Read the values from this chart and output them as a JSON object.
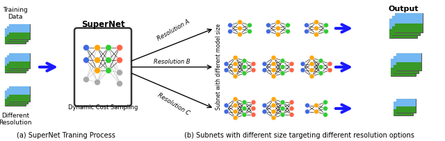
{
  "title_a": "(a) SuperNet Traning Process",
  "title_b": "(b) Subnets with different size targeting different resolution options",
  "supernet_label": "SuperNet",
  "dcs_label": "Dynamic Cost Sampling",
  "training_label": "Training\nData",
  "diff_res_label": "Different\nResolution",
  "output_label": "Output",
  "res_a_label": "Resolution A",
  "res_b_label": "Resolution B",
  "res_c_label": "Resolution C",
  "side_label": "Subnet with different model size",
  "node_colors": {
    "blue": "#4169e1",
    "orange": "#FFA500",
    "green": "#32CD32",
    "red": "#FF6347",
    "gray": "#A9A9A9"
  },
  "arrow_color": "#1a1aff",
  "bg_color": "#ffffff",
  "fig_width": 6.4,
  "fig_height": 2.04,
  "dpi": 100
}
